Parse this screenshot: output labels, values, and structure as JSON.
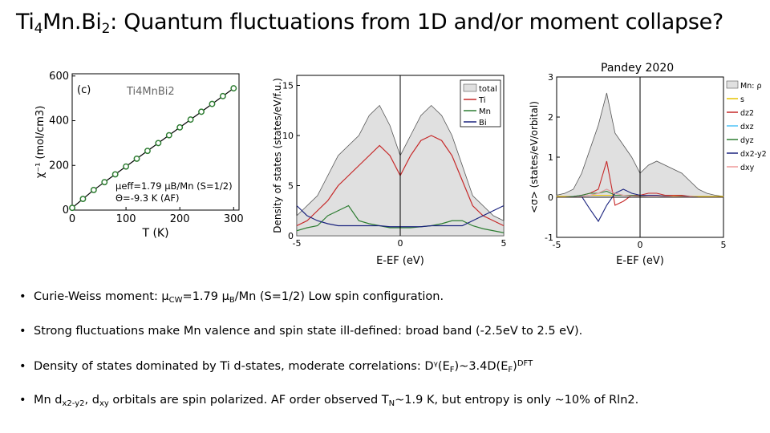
{
  "title": {
    "part1": "Ti",
    "sub1": "4",
    "part2": "Mn.Bi",
    "sub2": "2",
    "part3": ": Quantum fluctuations from 1D and/or moment collapse?"
  },
  "credit": "Pandey 2020",
  "chart_data": [
    {
      "type": "scatter",
      "panel_label": "(c)",
      "compound": "Ti4MnBi2",
      "xlabel": "T (K)",
      "ylabel": "χ⁻¹ (mol/cm3)",
      "xlim": [
        0,
        310
      ],
      "ylim": [
        0,
        610
      ],
      "x_ticks": [
        "0",
        "100",
        "200",
        "300"
      ],
      "y_ticks": [
        "0",
        "200",
        "400",
        "600"
      ],
      "series": [
        {
          "x": [
            0,
            20,
            40,
            60,
            80,
            100,
            120,
            140,
            160,
            180,
            200,
            220,
            240,
            260,
            280,
            300
          ],
          "y": [
            10,
            50,
            90,
            125,
            160,
            195,
            230,
            265,
            300,
            335,
            370,
            405,
            440,
            475,
            510,
            545
          ]
        }
      ],
      "annotation_line1": "μeff=1.79 μB/Mn (S=1/2)",
      "annotation_line2": "Θ=-9.3 K (AF)",
      "colors": {
        "points": "#2e7d32",
        "fit": "#000000"
      }
    },
    {
      "type": "line",
      "xlabel": "E-EF (eV)",
      "ylabel": "Density of states (states/eV/f.u.)",
      "xlim": [
        -5,
        5
      ],
      "ylim": [
        0,
        16
      ],
      "x_ticks": [
        "-5",
        "0",
        "5"
      ],
      "y_ticks": [
        "0",
        "5",
        "10",
        "15"
      ],
      "legend_placement": "top-right",
      "x": [
        -5,
        -4.5,
        -4,
        -3.5,
        -3,
        -2.5,
        -2,
        -1.5,
        -1,
        -0.5,
        0,
        0.5,
        1,
        1.5,
        2,
        2.5,
        3,
        3.5,
        4,
        4.5,
        5
      ],
      "series": [
        {
          "name": "total",
          "color": "#bdbdbd",
          "values": [
            2,
            3,
            4,
            6,
            8,
            9,
            10,
            12,
            13,
            11,
            8,
            10,
            12,
            13,
            12,
            10,
            7,
            4,
            3,
            2,
            1.5
          ]
        },
        {
          "name": "Ti",
          "color": "#c62828",
          "values": [
            1,
            1.5,
            2.5,
            3.5,
            5,
            6,
            7,
            8,
            9,
            8,
            6,
            8,
            9.5,
            10,
            9.5,
            8,
            5.5,
            3,
            2,
            1.5,
            1
          ]
        },
        {
          "name": "Mn",
          "color": "#2e7d32",
          "values": [
            0.5,
            0.8,
            1,
            2,
            2.5,
            3,
            1.5,
            1.2,
            1,
            0.8,
            0.8,
            0.8,
            0.9,
            1,
            1.2,
            1.5,
            1.5,
            1,
            0.7,
            0.5,
            0.3
          ]
        },
        {
          "name": "Bi",
          "color": "#1a237e",
          "values": [
            3,
            2,
            1.5,
            1.2,
            1,
            1,
            1,
            1,
            1,
            0.9,
            0.9,
            0.9,
            0.9,
            1,
            1,
            1,
            1,
            1.5,
            2,
            2.5,
            3
          ]
        }
      ]
    },
    {
      "type": "line",
      "xlabel": "E-EF (eV)",
      "ylabel": "<σ> (states/eV/orbital)",
      "xlim": [
        -5,
        5
      ],
      "ylim": [
        -1,
        3
      ],
      "x_ticks": [
        "-5",
        "0",
        "5"
      ],
      "y_ticks": [
        "-1",
        "0",
        "1",
        "2",
        "3"
      ],
      "legend_title": "Mn: ρ",
      "legend_placement": "top-right",
      "legend": [
        "s",
        "dz2",
        "dxz",
        "dyz",
        "dx2-y2",
        "dxy"
      ],
      "x": [
        -5,
        -4.5,
        -4,
        -3.5,
        -3,
        -2.5,
        -2,
        -1.5,
        -1,
        -0.5,
        0,
        0.5,
        1,
        1.5,
        2,
        2.5,
        3,
        3.5,
        4,
        4.5,
        5
      ],
      "series": [
        {
          "name": "Mn: ρ",
          "color": "#bdbdbd",
          "values": [
            0.05,
            0.1,
            0.2,
            0.6,
            1.2,
            1.8,
            2.6,
            1.6,
            1.3,
            1.0,
            0.6,
            0.8,
            0.9,
            0.8,
            0.7,
            0.6,
            0.4,
            0.2,
            0.1,
            0.05,
            0.02
          ]
        },
        {
          "name": "s",
          "color": "#e6c200",
          "values": [
            0.02,
            0.02,
            0.02,
            0.03,
            0.05,
            0.05,
            0.05,
            0.05,
            0.05,
            0.05,
            0.05,
            0.05,
            0.04,
            0.04,
            0.03,
            0.03,
            0.02,
            0.02,
            0.02,
            0.02,
            0.02
          ]
        },
        {
          "name": "dz2",
          "color": "#c62828",
          "values": [
            0,
            0,
            0.02,
            0.05,
            0.1,
            0.2,
            0.9,
            -0.2,
            -0.1,
            0.05,
            0.05,
            0.1,
            0.1,
            0.05,
            0.05,
            0.05,
            0.02,
            0,
            0,
            0,
            0
          ]
        },
        {
          "name": "dxz",
          "color": "#4fc3f7",
          "values": [
            0,
            0,
            0.02,
            0.03,
            0.05,
            0.1,
            0.2,
            0.1,
            0.05,
            0.03,
            0.02,
            0.03,
            0.03,
            0.02,
            0.02,
            0.02,
            0.01,
            0,
            0,
            0,
            0
          ]
        },
        {
          "name": "dyz",
          "color": "#2e7d32",
          "values": [
            0,
            0,
            0.02,
            0.05,
            0.1,
            0.1,
            0.15,
            0.05,
            0.05,
            0.05,
            0.03,
            0.05,
            0.05,
            0.03,
            0.02,
            0.02,
            0.01,
            0,
            0,
            0,
            0
          ]
        },
        {
          "name": "dx2-y2",
          "color": "#1a237e",
          "values": [
            0,
            0,
            0,
            0.02,
            -0.3,
            -0.6,
            -0.2,
            0.1,
            0.2,
            0.1,
            0.05,
            0.05,
            0.05,
            0.03,
            0.02,
            0.02,
            0.01,
            0,
            0,
            0,
            0
          ]
        },
        {
          "name": "dxy",
          "color": "#ef9a9a",
          "values": [
            0,
            0,
            0,
            0.02,
            0.05,
            0.1,
            0.2,
            0.1,
            0.05,
            0.03,
            0.02,
            0.03,
            0.03,
            0.02,
            0.02,
            0.01,
            0.01,
            0,
            0,
            0,
            0
          ]
        }
      ]
    }
  ],
  "bullets": [
    {
      "text_a": "Curie-Weiss moment: μ",
      "sub_a": "CW",
      "text_b": "=1.79 μ",
      "sub_b": "B",
      "text_c": "/Mn   (S=1/2)  Low spin configuration."
    },
    {
      "text": "Strong fluctuations make Mn valence and spin state ill-defined:  broad band  (-2.5eV to 2.5 eV)."
    },
    {
      "text_a": "Density of states dominated by Ti d-states, moderate correlations:  Dᵞ(E",
      "sub_a": "F",
      "text_b": ")~3.4D(E",
      "sub_b": "F",
      "text_c": ")",
      "sup_c": "DFT"
    },
    {
      "text_a": "Mn d",
      "sub_a": "x2-y2",
      "text_b": ", d",
      "sub_b": "xy",
      "text_c": " orbitals are spin polarized. AF order observed T",
      "sub_c": "N",
      "text_d": "~1.9 K, but  entropy is only ~10% of  Rln2."
    }
  ],
  "bullet_marker": "•"
}
